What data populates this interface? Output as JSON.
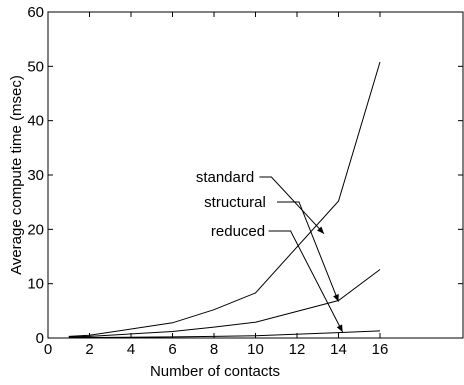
{
  "chart_data": {
    "type": "line",
    "title": "",
    "xlabel": "Number of contacts",
    "ylabel": "Average compute time (msec)",
    "xlim": [
      0,
      20
    ],
    "ylim": [
      0,
      60
    ],
    "xticks": [
      0,
      2,
      4,
      6,
      8,
      10,
      12,
      14,
      16
    ],
    "yticks": [
      0,
      10,
      20,
      30,
      40,
      50,
      60
    ],
    "grid": false,
    "legend": "none",
    "line_color": "#000000",
    "series": [
      {
        "name": "standard",
        "x": [
          1,
          2,
          6,
          8,
          10,
          14,
          16
        ],
        "y": [
          0.3,
          0.5,
          2.8,
          5.2,
          8.3,
          25.2,
          50.8
        ]
      },
      {
        "name": "structural",
        "x": [
          1,
          2,
          6,
          8,
          10,
          14,
          16
        ],
        "y": [
          0.2,
          0.3,
          1.2,
          2.0,
          2.9,
          6.9,
          12.6
        ]
      },
      {
        "name": "reduced",
        "x": [
          1,
          2,
          6,
          8,
          10,
          14,
          16
        ],
        "y": [
          0.1,
          0.1,
          0.2,
          0.3,
          0.4,
          1.0,
          1.3
        ]
      }
    ],
    "annotations": [
      {
        "text": "standard",
        "series": "standard",
        "x": 13.3,
        "y": 19.2
      },
      {
        "text": "structural",
        "series": "structural",
        "x": 14.0,
        "y": 6.7
      },
      {
        "text": "reduced",
        "series": "reduced",
        "x": 14.2,
        "y": 1.1
      }
    ]
  }
}
